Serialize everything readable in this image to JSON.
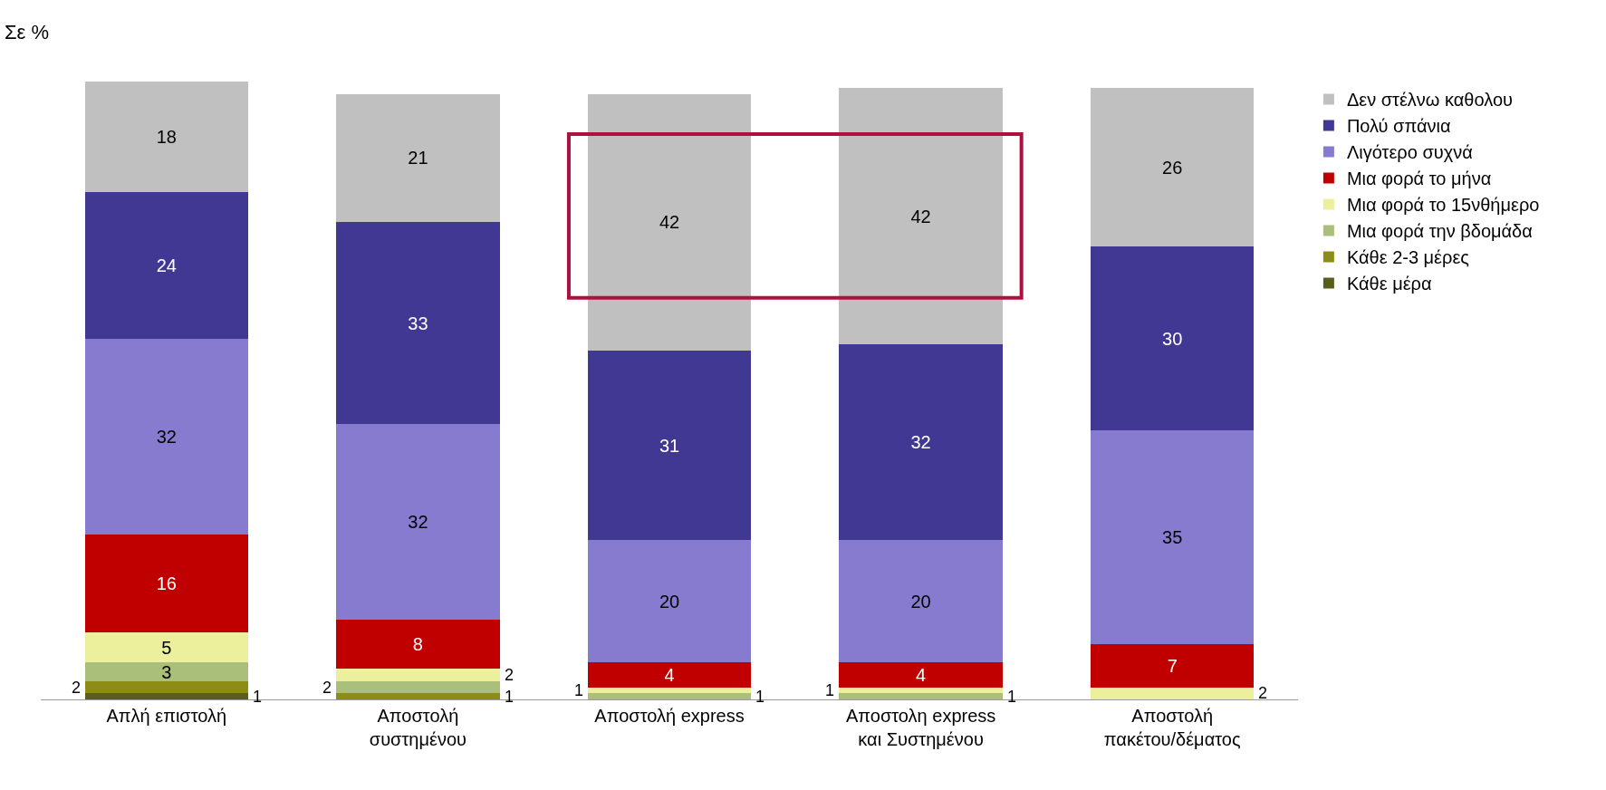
{
  "chart_data": {
    "type": "bar",
    "stacked": true,
    "ylabel": "Σε %",
    "data_labels": true,
    "ylim": [
      0,
      101
    ],
    "legend": "right",
    "categories": [
      "Απλή επιστολή",
      "Αποστολή συστημένου",
      "Αποστολή express",
      "Αποστολη express και Συστημένου",
      "Αποστολή πακέτου/δέματος"
    ],
    "series": [
      {
        "name": "Κάθε μέρα",
        "color": "#5a5e1c",
        "values": [
          1,
          null,
          null,
          null,
          null
        ]
      },
      {
        "name": "Κάθε 2-3 μέρες",
        "color": "#8c8c16",
        "values": [
          2,
          1,
          null,
          null,
          null
        ]
      },
      {
        "name": "Μια φορά την βδομάδα",
        "color": "#a9bf7a",
        "values": [
          3,
          2,
          1,
          1,
          null
        ]
      },
      {
        "name": "Μια φορά το 15νθήμερο",
        "color": "#ecef9c",
        "values": [
          5,
          2,
          1,
          1,
          2
        ]
      },
      {
        "name": "Μια φορά το μήνα",
        "color": "#c00000",
        "values": [
          16,
          8,
          4,
          4,
          7
        ]
      },
      {
        "name": "Λιγότερο συχνά",
        "color": "#877bcf",
        "values": [
          32,
          32,
          20,
          20,
          35
        ]
      },
      {
        "name": "Πολύ σπάνια",
        "color": "#413894",
        "values": [
          24,
          33,
          31,
          32,
          30
        ]
      },
      {
        "name": "Δεν στέλνω καθολου",
        "color": "#c0c0c0",
        "values": [
          18,
          21,
          42,
          42,
          26
        ]
      }
    ]
  }
}
